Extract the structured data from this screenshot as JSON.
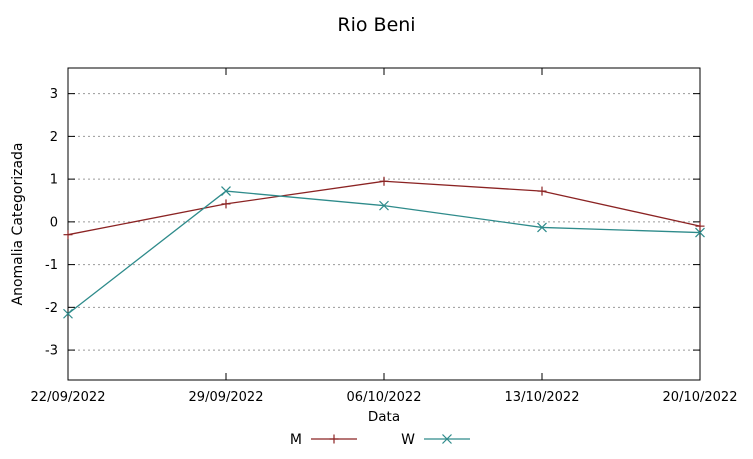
{
  "chart_data": {
    "type": "line",
    "title": "Rio Beni",
    "xlabel": "Data",
    "ylabel": "Anomalia Categorizada",
    "categories": [
      "22/09/2022",
      "29/09/2022",
      "06/10/2022",
      "13/10/2022",
      "20/10/2022"
    ],
    "yticks": [
      -3,
      -2,
      -1,
      0,
      1,
      2,
      3
    ],
    "ylim": [
      -3.7,
      3.6
    ],
    "grid": "horizontal-dotted",
    "legend_position": "bottom-center",
    "series": [
      {
        "name": "M",
        "color": "#8b2323",
        "marker": "plus",
        "values": [
          -0.3,
          0.42,
          0.95,
          0.72,
          -0.1
        ]
      },
      {
        "name": "W",
        "color": "#2e8b8b",
        "marker": "cross",
        "values": [
          -2.15,
          0.72,
          0.38,
          -0.13,
          -0.25
        ]
      }
    ],
    "colors": {
      "border": "#000000",
      "grid": "#9a9a9a",
      "text": "#000000"
    }
  }
}
